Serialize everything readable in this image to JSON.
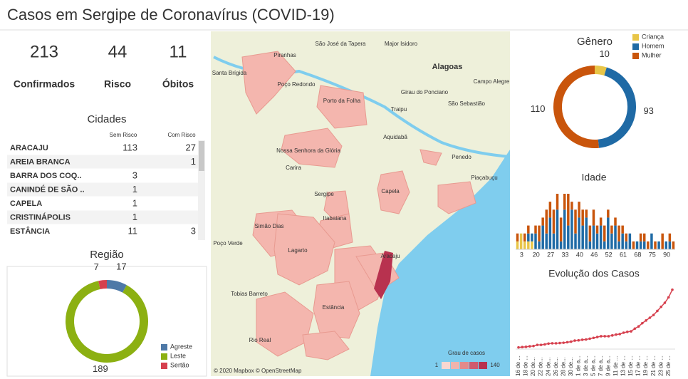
{
  "title": "Casos em Sergipe de Coronavírus (COVID-19)",
  "kpis": [
    {
      "value": 213,
      "label": "Confirmados",
      "color": "#333333"
    },
    {
      "value": 44,
      "label": "Risco",
      "color": "#d6404e"
    },
    {
      "value": 11,
      "label": "Óbitos",
      "color": "#d6404e"
    }
  ],
  "cities": {
    "title": "Cidades",
    "columns": [
      "Sem Risco",
      "Com Risco"
    ],
    "rows": [
      [
        "ARACAJU",
        113,
        27
      ],
      [
        "AREIA BRANCA",
        null,
        1
      ],
      [
        "BARRA DOS COQ..",
        3,
        null
      ],
      [
        "CANINDÉ DE SÃO ..",
        1,
        null
      ],
      [
        "CAPELA",
        1,
        null
      ],
      [
        "CRISTINÁPOLIS",
        1,
        null
      ],
      [
        "ESTÂNCIA",
        11,
        3
      ]
    ]
  },
  "region": {
    "type": "donut",
    "title": "Região",
    "series": [
      {
        "name": "Agreste",
        "color": "#4e79a7",
        "value": 17
      },
      {
        "name": "Leste",
        "color": "#8cb012",
        "value": 189
      },
      {
        "name": "Sertão",
        "color": "#d6404e",
        "value": 7
      }
    ]
  },
  "gender": {
    "type": "donut",
    "title": "Gênero",
    "series": [
      {
        "name": "Criança",
        "color": "#e8c547",
        "value": 10
      },
      {
        "name": "Homem",
        "color": "#1f6aa5",
        "value": 93
      },
      {
        "name": "Mulher",
        "color": "#c9550c",
        "value": 110
      }
    ]
  },
  "age": {
    "type": "stacked_bar",
    "title": "Idade",
    "ylim": [
      0,
      7
    ],
    "categories": [
      null,
      3,
      null,
      null,
      null,
      20,
      null,
      null,
      null,
      27,
      null,
      null,
      null,
      33,
      null,
      null,
      null,
      40,
      null,
      null,
      null,
      46,
      null,
      null,
      null,
      52,
      null,
      null,
      null,
      61,
      null,
      null,
      null,
      68,
      null,
      null,
      null,
      75,
      null,
      null,
      null,
      90,
      null,
      null
    ],
    "series": [
      {
        "name": "Criança",
        "color": "#e8c547",
        "values": [
          1,
          2,
          1,
          1,
          1,
          0,
          0,
          0,
          0,
          0,
          0,
          0,
          0,
          0,
          0,
          0,
          0,
          0,
          0,
          0,
          0,
          0,
          0,
          0,
          0,
          0,
          0,
          0,
          0,
          0,
          0,
          0,
          0,
          0,
          0,
          0,
          0,
          0,
          0,
          0,
          0,
          0,
          0,
          0
        ]
      },
      {
        "name": "Homem",
        "color": "#1f6aa5",
        "values": [
          0,
          0,
          0,
          1,
          1,
          2,
          1,
          3,
          2,
          4,
          2,
          5,
          1,
          5,
          3,
          5,
          2,
          4,
          3,
          4,
          1,
          3,
          2,
          3,
          1,
          4,
          2,
          3,
          1,
          2,
          1,
          2,
          0,
          1,
          1,
          1,
          0,
          2,
          0,
          1,
          0,
          1,
          1,
          0
        ]
      },
      {
        "name": "Mulher",
        "color": "#c9550c",
        "values": [
          1,
          0,
          1,
          1,
          0,
          1,
          2,
          1,
          3,
          2,
          3,
          2,
          3,
          2,
          4,
          1,
          3,
          2,
          2,
          1,
          2,
          2,
          1,
          1,
          2,
          1,
          1,
          1,
          2,
          1,
          1,
          0,
          1,
          0,
          1,
          1,
          1,
          0,
          1,
          0,
          2,
          0,
          1,
          1
        ]
      }
    ]
  },
  "evolution": {
    "type": "line",
    "title": "Evolução dos Casos",
    "color": "#d6404e",
    "ylim": [
      0,
      220
    ],
    "categories": [
      "16 de ...",
      null,
      "18 de ...",
      null,
      "20 de...",
      null,
      "22 de...",
      null,
      "24 de...",
      null,
      "26 de...",
      null,
      "28 de...",
      null,
      "30 de...",
      null,
      "1 de a...",
      null,
      "3 de a...",
      null,
      "5 de a...",
      null,
      "7 de a...",
      null,
      "9 de a...",
      null,
      "11 de ...",
      null,
      "13 de ...",
      null,
      "15 de ...",
      null,
      "17 de ...",
      null,
      "19 de ...",
      null,
      "21 de ...",
      null,
      "23 de ...",
      null,
      "25 de ...",
      null
    ],
    "values": [
      1,
      2,
      3,
      5,
      6,
      10,
      10,
      12,
      15,
      16,
      16,
      17,
      18,
      20,
      22,
      26,
      27,
      29,
      30,
      33,
      36,
      39,
      42,
      42,
      42,
      45,
      48,
      50,
      55,
      58,
      60,
      70,
      78,
      90,
      100,
      110,
      120,
      135,
      150,
      165,
      185,
      213
    ]
  },
  "map": {
    "labels": [
      "São José da Tapera",
      "Major Isidoro",
      "Piranhas",
      "Alagoas",
      "Santa Brígida",
      "Poço Redondo",
      "Porto da Folha",
      "Girau do Ponciano",
      "Campo Alegre",
      "Traipu",
      "São Sebastião",
      "Nossa Senhora da Glória",
      "Aquidabã",
      "Penedo",
      "Carira",
      "Piaçabuçu",
      "Capela",
      "Sergipe",
      "Itabaiana",
      "Simão Dias",
      "Lagarto",
      "Poço Verde",
      "Tobias Barreto",
      "Estância",
      "Rio Real",
      "Aracaju"
    ],
    "attribution": "© 2020 Mapbox © OpenStreetMap",
    "legend": {
      "title": "Grau de casos",
      "min": "1",
      "max": "140"
    }
  }
}
